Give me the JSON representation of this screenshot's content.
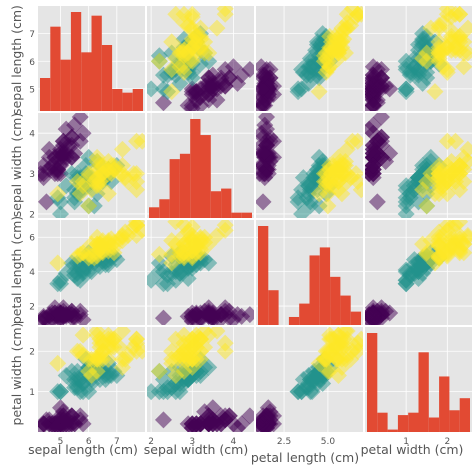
{
  "figure": {
    "style": "ggplot",
    "background": "#ffffff"
  },
  "colors": {
    "panel_bg": "#e5e5e5",
    "grid": "#ffffff",
    "hist_fill": "#e24a33",
    "tick_text": "#555555",
    "label_text": "#555555",
    "classes": [
      "#440154",
      "#21918c",
      "#fde725"
    ]
  },
  "chart_data": {
    "type": "scatter-matrix",
    "title": "",
    "marker": "diamond",
    "marker_alpha": 0.5,
    "variables": [
      "sepal length (cm)",
      "sepal width (cm)",
      "petal length (cm)",
      "petal width (cm)"
    ],
    "ranges": [
      [
        4.2,
        8.0
      ],
      [
        1.9,
        4.5
      ],
      [
        0.9,
        7.0
      ],
      [
        0.0,
        2.6
      ]
    ],
    "ticks": {
      "x": [
        [
          5,
          6,
          7
        ],
        [
          2,
          3,
          4
        ],
        [
          2.5,
          5.0
        ],
        [
          1,
          2
        ]
      ],
      "y": [
        [
          5,
          6,
          7
        ],
        [
          2,
          3,
          4
        ],
        [
          2,
          4,
          6
        ],
        [
          1,
          2
        ]
      ]
    },
    "class_summary": [
      {
        "sepal_length": [
          4.3,
          5.8
        ],
        "sepal_width": [
          2.3,
          4.4
        ],
        "petal_length": [
          1.0,
          1.9
        ],
        "petal_width": [
          0.1,
          0.6
        ]
      },
      {
        "sepal_length": [
          4.9,
          7.0
        ],
        "sepal_width": [
          2.0,
          3.4
        ],
        "petal_length": [
          3.0,
          5.1
        ],
        "petal_width": [
          1.0,
          1.8
        ]
      },
      {
        "sepal_length": [
          4.9,
          7.9
        ],
        "sepal_width": [
          2.2,
          3.8
        ],
        "petal_length": [
          4.5,
          6.9
        ],
        "petal_width": [
          1.4,
          2.5
        ]
      }
    ],
    "histograms": [
      {
        "variable": "sepal length (cm)",
        "counts": [
          9,
          23,
          14,
          27,
          16,
          26,
          18,
          6,
          5,
          6
        ]
      },
      {
        "variable": "sepal width (cm)",
        "counts": [
          4,
          7,
          22,
          24,
          37,
          31,
          10,
          11,
          2,
          2
        ]
      },
      {
        "variable": "petal length (cm)",
        "counts": [
          37,
          13,
          0,
          3,
          8,
          26,
          29,
          18,
          11,
          5
        ]
      },
      {
        "variable": "petal width (cm)",
        "counts": [
          41,
          8,
          1,
          7,
          8,
          33,
          6,
          23,
          9,
          14
        ]
      }
    ],
    "samples": [
      [
        5.1,
        3.5,
        1.4,
        0.2,
        0
      ],
      [
        4.9,
        3.0,
        1.4,
        0.2,
        0
      ],
      [
        4.7,
        3.2,
        1.3,
        0.2,
        0
      ],
      [
        4.6,
        3.1,
        1.5,
        0.2,
        0
      ],
      [
        5.0,
        3.6,
        1.4,
        0.2,
        0
      ],
      [
        5.4,
        3.9,
        1.7,
        0.4,
        0
      ],
      [
        4.6,
        3.4,
        1.4,
        0.3,
        0
      ],
      [
        5.0,
        3.4,
        1.5,
        0.2,
        0
      ],
      [
        4.4,
        2.9,
        1.4,
        0.2,
        0
      ],
      [
        4.9,
        3.1,
        1.5,
        0.1,
        0
      ],
      [
        5.4,
        3.7,
        1.5,
        0.2,
        0
      ],
      [
        4.8,
        3.4,
        1.6,
        0.2,
        0
      ],
      [
        4.8,
        3.0,
        1.4,
        0.1,
        0
      ],
      [
        4.3,
        3.0,
        1.1,
        0.1,
        0
      ],
      [
        5.8,
        4.0,
        1.2,
        0.2,
        0
      ],
      [
        5.7,
        4.4,
        1.5,
        0.4,
        0
      ],
      [
        5.4,
        3.9,
        1.3,
        0.4,
        0
      ],
      [
        5.1,
        3.5,
        1.4,
        0.3,
        0
      ],
      [
        5.7,
        3.8,
        1.7,
        0.3,
        0
      ],
      [
        5.1,
        3.8,
        1.5,
        0.3,
        0
      ],
      [
        5.4,
        3.4,
        1.7,
        0.2,
        0
      ],
      [
        5.1,
        3.7,
        1.5,
        0.4,
        0
      ],
      [
        4.6,
        3.6,
        1.0,
        0.2,
        0
      ],
      [
        5.1,
        3.3,
        1.7,
        0.5,
        0
      ],
      [
        4.8,
        3.4,
        1.9,
        0.2,
        0
      ],
      [
        5.0,
        3.0,
        1.6,
        0.2,
        0
      ],
      [
        5.0,
        3.4,
        1.6,
        0.4,
        0
      ],
      [
        5.2,
        3.5,
        1.5,
        0.2,
        0
      ],
      [
        5.2,
        3.4,
        1.4,
        0.2,
        0
      ],
      [
        4.7,
        3.2,
        1.6,
        0.2,
        0
      ],
      [
        4.8,
        3.1,
        1.6,
        0.2,
        0
      ],
      [
        5.4,
        3.4,
        1.5,
        0.4,
        0
      ],
      [
        5.2,
        4.1,
        1.5,
        0.1,
        0
      ],
      [
        5.5,
        4.2,
        1.4,
        0.2,
        0
      ],
      [
        4.9,
        3.1,
        1.5,
        0.2,
        0
      ],
      [
        5.0,
        3.2,
        1.2,
        0.2,
        0
      ],
      [
        5.5,
        3.5,
        1.3,
        0.2,
        0
      ],
      [
        4.4,
        3.0,
        1.3,
        0.2,
        0
      ],
      [
        5.1,
        3.4,
        1.5,
        0.2,
        0
      ],
      [
        5.0,
        3.5,
        1.3,
        0.3,
        0
      ],
      [
        4.5,
        2.3,
        1.3,
        0.3,
        0
      ],
      [
        4.4,
        3.2,
        1.3,
        0.2,
        0
      ],
      [
        5.0,
        3.5,
        1.6,
        0.6,
        0
      ],
      [
        5.1,
        3.8,
        1.9,
        0.4,
        0
      ],
      [
        5.3,
        3.7,
        1.5,
        0.2,
        0
      ],
      [
        7.0,
        3.2,
        4.7,
        1.4,
        1
      ],
      [
        6.4,
        3.2,
        4.5,
        1.5,
        1
      ],
      [
        6.9,
        3.1,
        4.9,
        1.5,
        1
      ],
      [
        5.5,
        2.3,
        4.0,
        1.3,
        1
      ],
      [
        6.5,
        2.8,
        4.6,
        1.5,
        1
      ],
      [
        5.7,
        2.8,
        4.5,
        1.3,
        1
      ],
      [
        6.3,
        3.3,
        4.7,
        1.6,
        1
      ],
      [
        4.9,
        2.4,
        3.3,
        1.0,
        1
      ],
      [
        6.6,
        2.9,
        4.6,
        1.3,
        1
      ],
      [
        5.2,
        2.7,
        3.9,
        1.4,
        1
      ],
      [
        5.0,
        2.0,
        3.5,
        1.0,
        1
      ],
      [
        5.9,
        3.0,
        4.2,
        1.5,
        1
      ],
      [
        6.0,
        2.2,
        4.0,
        1.0,
        1
      ],
      [
        6.1,
        2.9,
        4.7,
        1.4,
        1
      ],
      [
        5.6,
        2.9,
        3.6,
        1.3,
        1
      ],
      [
        6.7,
        3.1,
        4.4,
        1.4,
        1
      ],
      [
        5.6,
        3.0,
        4.5,
        1.5,
        1
      ],
      [
        5.8,
        2.7,
        4.1,
        1.0,
        1
      ],
      [
        6.2,
        2.2,
        4.5,
        1.5,
        1
      ],
      [
        5.6,
        2.5,
        3.9,
        1.1,
        1
      ],
      [
        5.9,
        3.2,
        4.8,
        1.8,
        1
      ],
      [
        6.1,
        2.8,
        4.0,
        1.3,
        1
      ],
      [
        6.3,
        2.5,
        4.9,
        1.5,
        1
      ],
      [
        6.1,
        2.8,
        4.7,
        1.2,
        1
      ],
      [
        6.4,
        2.9,
        4.3,
        1.3,
        1
      ],
      [
        6.6,
        3.0,
        4.4,
        1.4,
        1
      ],
      [
        6.8,
        2.8,
        4.8,
        1.4,
        1
      ],
      [
        6.7,
        3.0,
        5.0,
        1.7,
        1
      ],
      [
        6.0,
        2.9,
        4.5,
        1.5,
        1
      ],
      [
        5.7,
        2.6,
        3.5,
        1.0,
        1
      ],
      [
        5.5,
        2.4,
        3.8,
        1.1,
        1
      ],
      [
        5.8,
        2.7,
        3.9,
        1.2,
        1
      ],
      [
        6.0,
        2.7,
        5.1,
        1.6,
        1
      ],
      [
        5.4,
        3.0,
        4.5,
        1.5,
        1
      ],
      [
        6.0,
        3.4,
        4.5,
        1.6,
        1
      ],
      [
        6.7,
        3.1,
        4.7,
        1.5,
        1
      ],
      [
        5.5,
        2.6,
        4.4,
        1.2,
        1
      ],
      [
        5.8,
        2.6,
        4.0,
        1.2,
        1
      ],
      [
        5.0,
        2.3,
        3.3,
        1.0,
        1
      ],
      [
        5.7,
        2.9,
        4.2,
        1.3,
        1
      ],
      [
        6.3,
        3.3,
        6.0,
        2.5,
        2
      ],
      [
        5.8,
        2.7,
        5.1,
        1.9,
        2
      ],
      [
        7.1,
        3.0,
        5.9,
        2.1,
        2
      ],
      [
        6.3,
        2.9,
        5.6,
        1.8,
        2
      ],
      [
        6.5,
        3.0,
        5.8,
        2.2,
        2
      ],
      [
        7.6,
        3.0,
        6.6,
        2.1,
        2
      ],
      [
        4.9,
        2.5,
        4.5,
        1.7,
        2
      ],
      [
        7.3,
        2.9,
        6.3,
        1.8,
        2
      ],
      [
        6.7,
        2.5,
        5.8,
        1.8,
        2
      ],
      [
        7.2,
        3.6,
        6.1,
        2.5,
        2
      ],
      [
        6.5,
        3.2,
        5.1,
        2.0,
        2
      ],
      [
        6.4,
        2.7,
        5.3,
        1.9,
        2
      ],
      [
        6.8,
        3.0,
        5.5,
        2.1,
        2
      ],
      [
        5.7,
        2.5,
        5.0,
        2.0,
        2
      ],
      [
        5.8,
        2.8,
        5.1,
        2.4,
        2
      ],
      [
        6.4,
        3.2,
        5.3,
        2.3,
        2
      ],
      [
        6.5,
        3.0,
        5.5,
        1.8,
        2
      ],
      [
        7.7,
        3.8,
        6.7,
        2.2,
        2
      ],
      [
        7.7,
        2.6,
        6.9,
        2.3,
        2
      ],
      [
        6.0,
        2.2,
        5.0,
        1.5,
        2
      ],
      [
        6.9,
        3.2,
        5.7,
        2.3,
        2
      ],
      [
        5.6,
        2.8,
        4.9,
        2.0,
        2
      ],
      [
        7.7,
        2.8,
        6.7,
        2.0,
        2
      ],
      [
        6.3,
        2.7,
        4.9,
        1.8,
        2
      ],
      [
        6.7,
        3.3,
        5.7,
        2.1,
        2
      ],
      [
        7.2,
        3.2,
        6.0,
        1.8,
        2
      ],
      [
        6.2,
        2.8,
        4.8,
        1.8,
        2
      ],
      [
        6.1,
        3.0,
        4.9,
        1.8,
        2
      ],
      [
        6.4,
        2.8,
        5.6,
        2.1,
        2
      ],
      [
        7.2,
        3.0,
        5.8,
        1.6,
        2
      ],
      [
        7.4,
        2.8,
        6.1,
        1.9,
        2
      ],
      [
        7.9,
        3.8,
        6.4,
        2.0,
        2
      ],
      [
        6.4,
        2.8,
        5.6,
        2.2,
        2
      ],
      [
        6.3,
        2.8,
        5.1,
        1.5,
        2
      ],
      [
        6.1,
        2.6,
        5.6,
        1.4,
        2
      ],
      [
        7.7,
        3.0,
        6.1,
        2.3,
        2
      ],
      [
        6.3,
        3.4,
        5.6,
        2.4,
        2
      ],
      [
        6.4,
        3.1,
        5.5,
        1.8,
        2
      ],
      [
        6.0,
        3.0,
        4.8,
        1.8,
        2
      ],
      [
        6.9,
        3.1,
        5.4,
        2.1,
        2
      ],
      [
        6.7,
        3.1,
        5.6,
        2.4,
        2
      ],
      [
        6.9,
        3.1,
        5.1,
        2.3,
        2
      ],
      [
        6.8,
        3.2,
        5.9,
        2.3,
        2
      ],
      [
        6.7,
        3.0,
        5.2,
        2.3,
        2
      ],
      [
        6.5,
        3.0,
        5.2,
        2.0,
        2
      ]
    ]
  }
}
